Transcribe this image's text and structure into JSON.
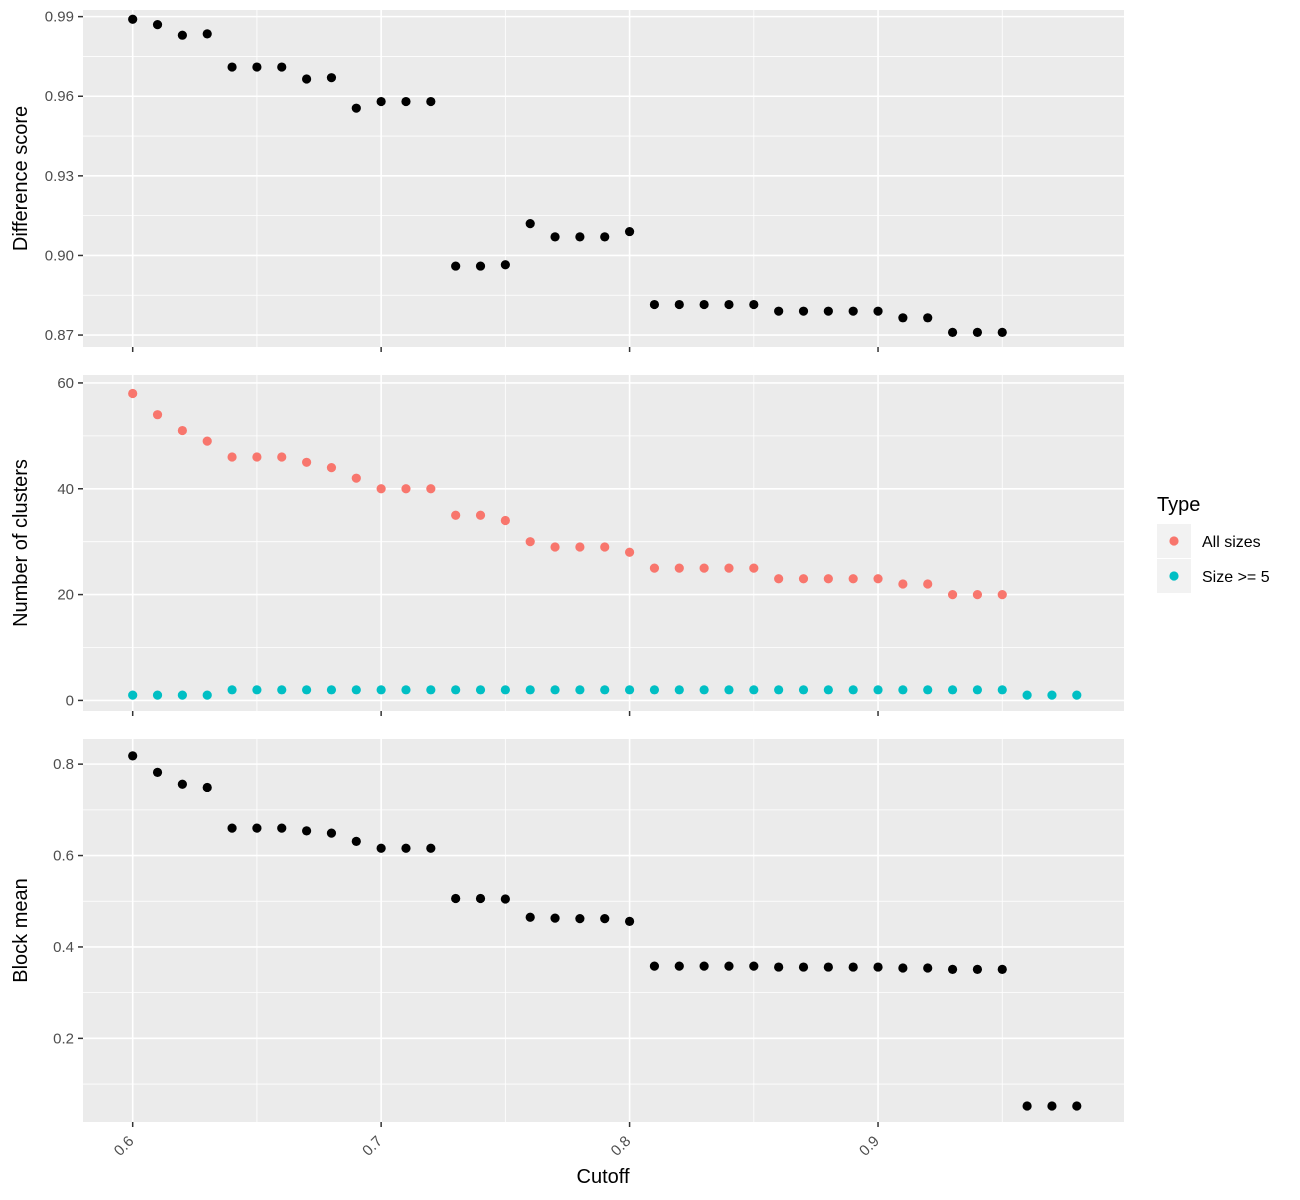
{
  "chart_data": {
    "type": "scatter",
    "xlabel": "Cutoff",
    "x_ticks": [
      0.6,
      0.7,
      0.8,
      0.9
    ],
    "x_tick_labels": [
      "0.6",
      "0.7",
      "0.8",
      "0.9"
    ],
    "xlim": [
      0.58,
      0.999
    ],
    "legend": {
      "title": "Type",
      "placement": "right",
      "entries": [
        {
          "label": "All sizes",
          "color": "#F8766D"
        },
        {
          "label": "Size >= 5",
          "color": "#00BFC4"
        }
      ]
    },
    "panels": [
      {
        "ylabel": "Difference score",
        "ylim": [
          0.8655,
          0.9925
        ],
        "y_ticks": [
          0.87,
          0.9,
          0.93,
          0.96,
          0.99
        ],
        "y_tick_labels": [
          "0.87",
          "0.90",
          "0.93",
          "0.96",
          "0.99"
        ],
        "series": [
          {
            "color": "#000000",
            "x": [
              0.6,
              0.61,
              0.62,
              0.63,
              0.64,
              0.65,
              0.66,
              0.67,
              0.68,
              0.69,
              0.7,
              0.71,
              0.72,
              0.73,
              0.74,
              0.75,
              0.76,
              0.77,
              0.78,
              0.79,
              0.8,
              0.81,
              0.82,
              0.83,
              0.84,
              0.85,
              0.86,
              0.87,
              0.88,
              0.89,
              0.9,
              0.91,
              0.92,
              0.93,
              0.94,
              0.95
            ],
            "y": [
              0.989,
              0.987,
              0.983,
              0.9835,
              0.971,
              0.971,
              0.971,
              0.9665,
              0.967,
              0.9555,
              0.958,
              0.958,
              0.958,
              0.896,
              0.896,
              0.8965,
              0.912,
              0.907,
              0.907,
              0.907,
              0.909,
              0.8815,
              0.8815,
              0.8815,
              0.8815,
              0.8815,
              0.879,
              0.879,
              0.879,
              0.879,
              0.879,
              0.8765,
              0.8765,
              0.871,
              0.871,
              0.871
            ]
          }
        ]
      },
      {
        "ylabel": "Number of clusters",
        "ylim": [
          -2,
          61.5
        ],
        "y_ticks": [
          0,
          20,
          40,
          60
        ],
        "y_tick_labels": [
          "0",
          "20",
          "40",
          "60"
        ],
        "series": [
          {
            "name": "All sizes",
            "color": "#F8766D",
            "x": [
              0.6,
              0.61,
              0.62,
              0.63,
              0.64,
              0.65,
              0.66,
              0.67,
              0.68,
              0.69,
              0.7,
              0.71,
              0.72,
              0.73,
              0.74,
              0.75,
              0.76,
              0.77,
              0.78,
              0.79,
              0.8,
              0.81,
              0.82,
              0.83,
              0.84,
              0.85,
              0.86,
              0.87,
              0.88,
              0.89,
              0.9,
              0.91,
              0.92,
              0.93,
              0.94,
              0.95
            ],
            "y": [
              58,
              54,
              51,
              49,
              46,
              46,
              46,
              45,
              44,
              42,
              40,
              40,
              40,
              35,
              35,
              34,
              30,
              29,
              29,
              29,
              28,
              25,
              25,
              25,
              25,
              25,
              23,
              23,
              23,
              23,
              23,
              22,
              22,
              20,
              20,
              20
            ]
          },
          {
            "name": "Size >= 5",
            "color": "#00BFC4",
            "x": [
              0.6,
              0.61,
              0.62,
              0.63,
              0.64,
              0.65,
              0.66,
              0.67,
              0.68,
              0.69,
              0.7,
              0.71,
              0.72,
              0.73,
              0.74,
              0.75,
              0.76,
              0.77,
              0.78,
              0.79,
              0.8,
              0.81,
              0.82,
              0.83,
              0.84,
              0.85,
              0.86,
              0.87,
              0.88,
              0.89,
              0.9,
              0.91,
              0.92,
              0.93,
              0.94,
              0.95,
              0.96,
              0.97,
              0.98
            ],
            "y": [
              1,
              1,
              1,
              1,
              2,
              2,
              2,
              2,
              2,
              2,
              2,
              2,
              2,
              2,
              2,
              2,
              2,
              2,
              2,
              2,
              2,
              2,
              2,
              2,
              2,
              2,
              2,
              2,
              2,
              2,
              2,
              2,
              2,
              2,
              2,
              2,
              1,
              1,
              1
            ]
          }
        ]
      },
      {
        "ylabel": "Block mean",
        "ylim": [
          0.017,
          0.855
        ],
        "y_ticks": [
          0.2,
          0.4,
          0.6,
          0.8
        ],
        "y_tick_labels": [
          "0.2",
          "0.4",
          "0.6",
          "0.8"
        ],
        "series": [
          {
            "color": "#000000",
            "x": [
              0.6,
              0.61,
              0.62,
              0.63,
              0.64,
              0.65,
              0.66,
              0.67,
              0.68,
              0.69,
              0.7,
              0.71,
              0.72,
              0.73,
              0.74,
              0.75,
              0.76,
              0.77,
              0.78,
              0.79,
              0.8,
              0.81,
              0.82,
              0.83,
              0.84,
              0.85,
              0.86,
              0.87,
              0.88,
              0.89,
              0.9,
              0.91,
              0.92,
              0.93,
              0.94,
              0.95,
              0.96,
              0.97,
              0.98
            ],
            "y": [
              0.818,
              0.782,
              0.756,
              0.749,
              0.66,
              0.66,
              0.66,
              0.654,
              0.649,
              0.631,
              0.616,
              0.616,
              0.616,
              0.506,
              0.506,
              0.505,
              0.465,
              0.463,
              0.462,
              0.462,
              0.456,
              0.358,
              0.358,
              0.358,
              0.358,
              0.358,
              0.356,
              0.356,
              0.356,
              0.356,
              0.356,
              0.354,
              0.354,
              0.351,
              0.351,
              0.351,
              0.052,
              0.052,
              0.052
            ]
          }
        ]
      }
    ]
  }
}
